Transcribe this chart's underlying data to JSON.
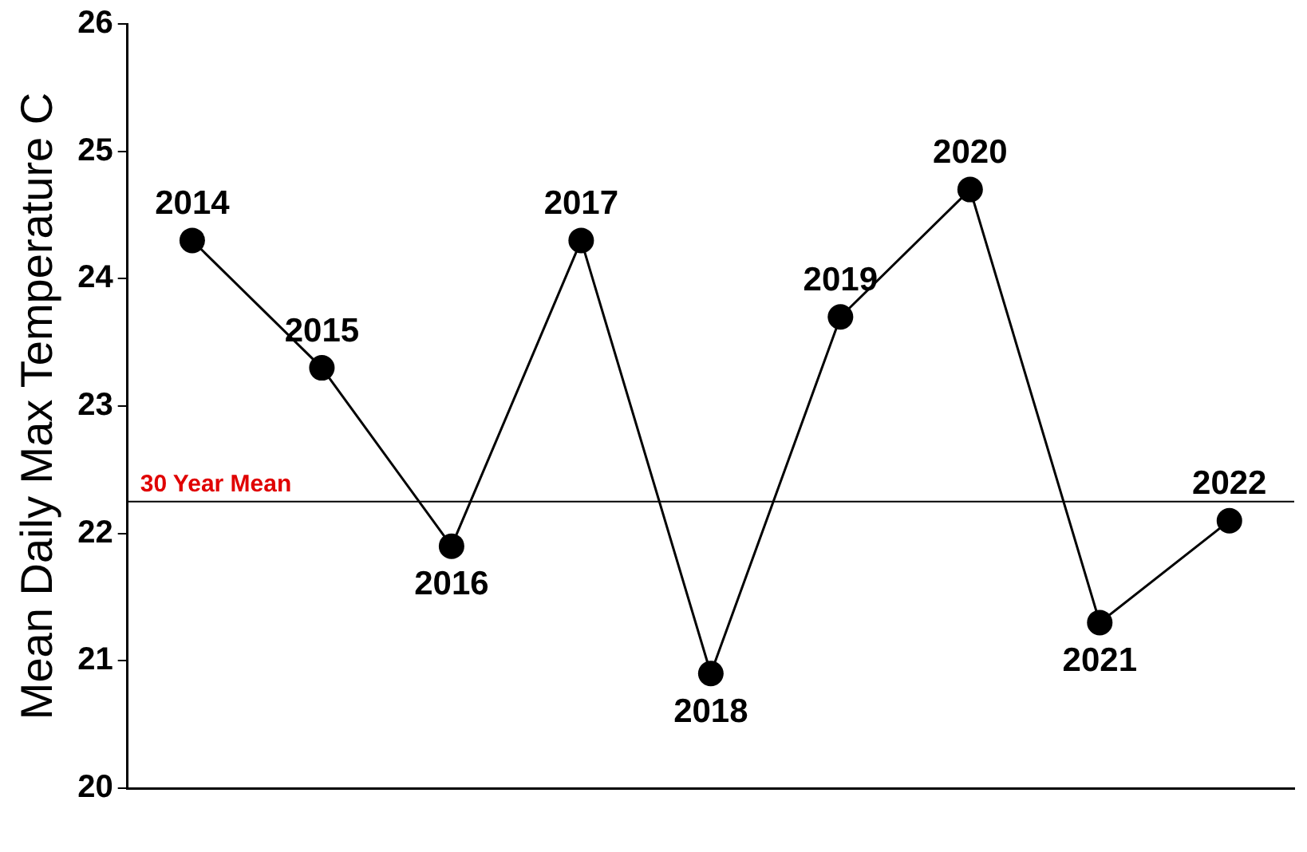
{
  "chart_data": {
    "type": "line",
    "ylabel": "Mean Daily Max Temperature C",
    "categories": [
      null,
      null,
      null,
      null,
      null,
      null,
      null,
      null,
      null
    ],
    "series": [
      {
        "color": "#000000",
        "values": [
          24.3,
          23.3,
          21.9,
          24.3,
          20.9,
          23.7,
          24.7,
          21.3,
          22.1
        ]
      }
    ],
    "ylim": [
      20,
      26
    ],
    "yticks": [
      20,
      21,
      22,
      23,
      24,
      25,
      26
    ],
    "grid": false,
    "legend": false,
    "marker": "circle",
    "line_style": "solid",
    "ref_lines": [
      {
        "axis": "y",
        "value": 22.25,
        "label": "30 Year Mean",
        "color": "#000000"
      }
    ],
    "annotations": [
      {
        "text": "2014",
        "y": 24.3
      },
      {
        "text": "2015",
        "y": 23.3
      },
      {
        "text": "2016",
        "y": 21.9
      },
      {
        "text": "2017",
        "y": 24.3
      },
      {
        "text": "2018",
        "y": 20.9
      },
      {
        "text": "2019",
        "y": 23.7
      },
      {
        "text": "2020",
        "y": 24.7
      },
      {
        "text": "2021",
        "y": 21.3
      },
      {
        "text": "2022",
        "y": 22.1
      }
    ]
  }
}
